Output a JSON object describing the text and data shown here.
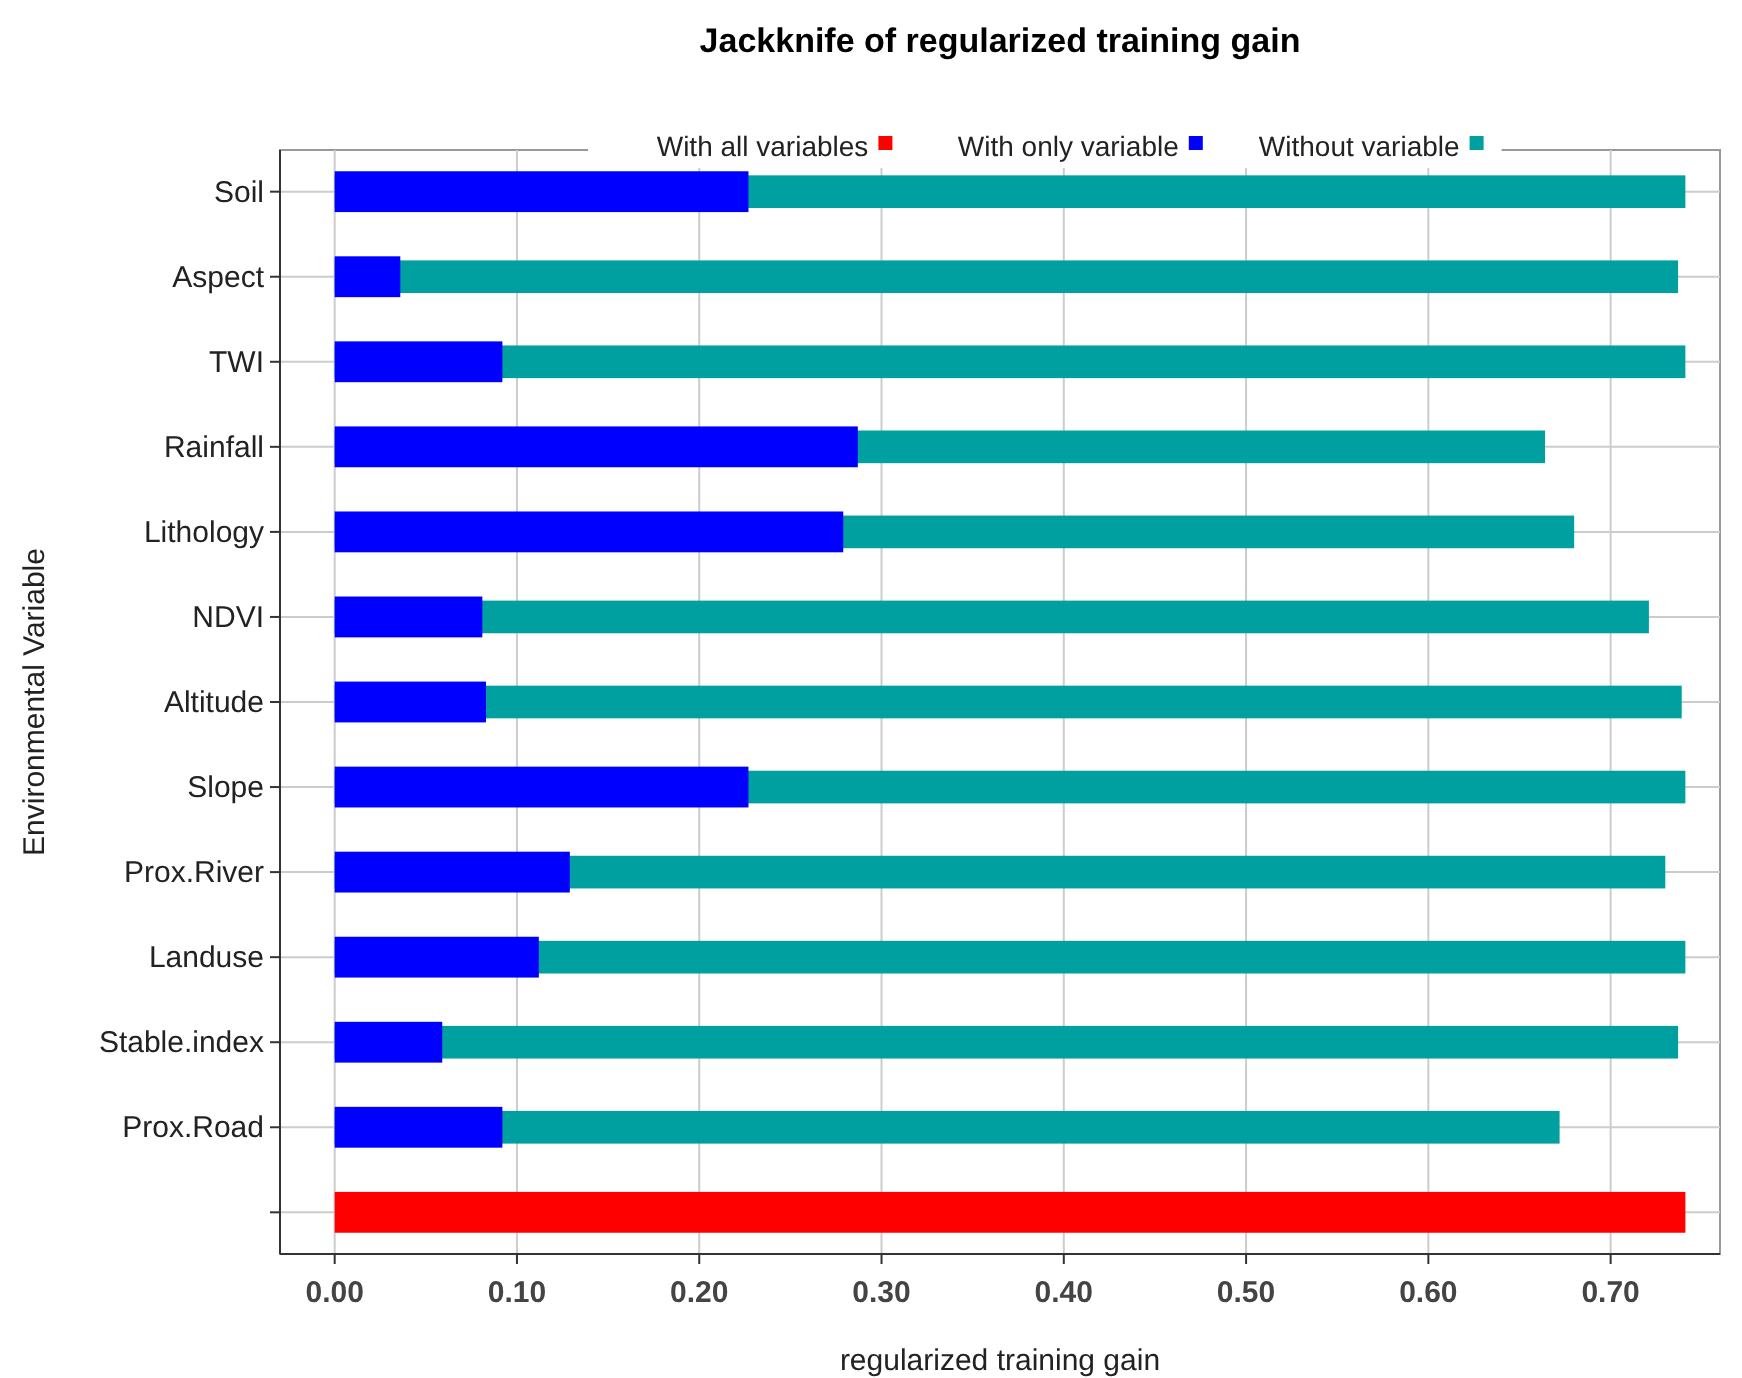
{
  "chart_data": {
    "type": "bar",
    "orientation": "horizontal",
    "title": "Jackknife of regularized training gain",
    "xlabel": "regularized training gain",
    "ylabel": "Environmental Variable",
    "categories": [
      "Soil",
      "Aspect",
      "TWI",
      "Rainfall",
      "Lithology",
      "NDVI",
      "Altitude",
      "Slope",
      "Prox.River",
      "Landuse",
      "Stable.index",
      "Prox.Road",
      null
    ],
    "series": [
      {
        "name": "With all variables",
        "color": "#ff0000",
        "values": [
          null,
          null,
          null,
          null,
          null,
          null,
          null,
          null,
          null,
          null,
          null,
          null,
          0.741
        ]
      },
      {
        "name": "With only variable",
        "color": "#0000ff",
        "values": [
          0.227,
          0.036,
          0.092,
          0.287,
          0.279,
          0.081,
          0.083,
          0.227,
          0.129,
          0.112,
          0.059,
          0.092,
          null
        ]
      },
      {
        "name": "Without variable",
        "color": "#00a0a0",
        "values": [
          0.741,
          0.737,
          0.741,
          0.664,
          0.68,
          0.721,
          0.739,
          0.741,
          0.73,
          0.741,
          0.737,
          0.672,
          null
        ]
      }
    ],
    "xlim": [
      -0.03,
      0.76
    ],
    "xticks": [
      {
        "value": 0,
        "label": "0.00"
      },
      {
        "value": 0.1,
        "label": "0.10"
      },
      {
        "value": 0.2,
        "label": "0.20"
      },
      {
        "value": 0.3,
        "label": "0.30"
      },
      {
        "value": 0.4,
        "label": "0.40"
      },
      {
        "value": 0.5,
        "label": "0.50"
      },
      {
        "value": 0.6,
        "label": "0.60"
      },
      {
        "value": 0.7,
        "label": "0.70"
      }
    ],
    "grid": true,
    "legend": "top"
  }
}
